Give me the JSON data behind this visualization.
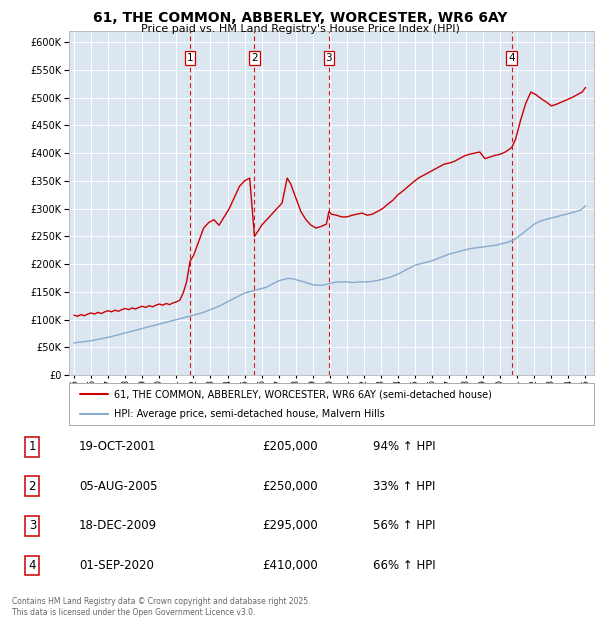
{
  "title": "61, THE COMMON, ABBERLEY, WORCESTER, WR6 6AY",
  "subtitle": "Price paid vs. HM Land Registry's House Price Index (HPI)",
  "legend_property": "61, THE COMMON, ABBERLEY, WORCESTER, WR6 6AY (semi-detached house)",
  "legend_hpi": "HPI: Average price, semi-detached house, Malvern Hills",
  "footer": "Contains HM Land Registry data © Crown copyright and database right 2025.\nThis data is licensed under the Open Government Licence v3.0.",
  "ylim": [
    0,
    620000
  ],
  "yticks": [
    0,
    50000,
    100000,
    150000,
    200000,
    250000,
    300000,
    350000,
    400000,
    450000,
    500000,
    550000,
    600000
  ],
  "xlim_start": 1994.7,
  "xlim_end": 2025.5,
  "property_color": "#cc0000",
  "hpi_color": "#88aacc",
  "background_color": "#dce6f1",
  "sale_events": [
    {
      "num": 1,
      "year": 2001.8,
      "price": 205000,
      "label": "19-OCT-2001",
      "pct": "94%",
      "dir": "↑"
    },
    {
      "num": 2,
      "year": 2005.58,
      "price": 250000,
      "label": "05-AUG-2005",
      "pct": "33%",
      "dir": "↑"
    },
    {
      "num": 3,
      "year": 2009.95,
      "price": 295000,
      "label": "18-DEC-2009",
      "pct": "56%",
      "dir": "↑"
    },
    {
      "num": 4,
      "year": 2020.67,
      "price": 410000,
      "label": "01-SEP-2020",
      "pct": "66%",
      "dir": "↑"
    }
  ],
  "property_line_x": [
    1995.0,
    1995.2,
    1995.4,
    1995.6,
    1995.8,
    1996.0,
    1996.2,
    1996.4,
    1996.6,
    1996.8,
    1997.0,
    1997.2,
    1997.4,
    1997.6,
    1997.8,
    1998.0,
    1998.2,
    1998.4,
    1998.6,
    1998.8,
    1999.0,
    1999.2,
    1999.4,
    1999.6,
    1999.8,
    2000.0,
    2000.2,
    2000.4,
    2000.6,
    2000.8,
    2001.0,
    2001.2,
    2001.4,
    2001.6,
    2001.8,
    2001.8,
    2002.0,
    2002.3,
    2002.6,
    2002.9,
    2003.2,
    2003.5,
    2003.8,
    2004.1,
    2004.4,
    2004.7,
    2005.0,
    2005.3,
    2005.58,
    2005.58,
    2005.8,
    2006.0,
    2006.3,
    2006.6,
    2006.9,
    2007.2,
    2007.5,
    2007.7,
    2008.0,
    2008.3,
    2008.6,
    2008.9,
    2009.2,
    2009.5,
    2009.8,
    2009.95,
    2009.95,
    2010.1,
    2010.4,
    2010.7,
    2011.0,
    2011.3,
    2011.6,
    2011.9,
    2012.2,
    2012.5,
    2012.8,
    2013.1,
    2013.4,
    2013.7,
    2014.0,
    2014.3,
    2014.6,
    2014.9,
    2015.2,
    2015.5,
    2015.8,
    2016.1,
    2016.4,
    2016.7,
    2017.0,
    2017.3,
    2017.6,
    2017.9,
    2018.2,
    2018.5,
    2018.8,
    2019.1,
    2019.4,
    2019.7,
    2020.0,
    2020.3,
    2020.67,
    2020.67,
    2020.9,
    2021.2,
    2021.5,
    2021.8,
    2022.1,
    2022.4,
    2022.7,
    2023.0,
    2023.3,
    2023.6,
    2023.9,
    2024.2,
    2024.5,
    2024.8,
    2025.0
  ],
  "property_line_y": [
    108000,
    106000,
    109000,
    107000,
    110000,
    112000,
    110000,
    113000,
    111000,
    114000,
    116000,
    114000,
    117000,
    115000,
    118000,
    120000,
    118000,
    121000,
    119000,
    122000,
    124000,
    122000,
    125000,
    123000,
    126000,
    128000,
    126000,
    129000,
    127000,
    130000,
    132000,
    135000,
    148000,
    168000,
    205000,
    205000,
    215000,
    240000,
    265000,
    275000,
    280000,
    270000,
    285000,
    300000,
    320000,
    340000,
    350000,
    355000,
    250000,
    250000,
    260000,
    270000,
    280000,
    290000,
    300000,
    310000,
    355000,
    345000,
    320000,
    295000,
    280000,
    270000,
    265000,
    268000,
    272000,
    295000,
    295000,
    290000,
    288000,
    285000,
    285000,
    288000,
    290000,
    292000,
    288000,
    290000,
    295000,
    300000,
    308000,
    315000,
    325000,
    332000,
    340000,
    348000,
    355000,
    360000,
    365000,
    370000,
    375000,
    380000,
    382000,
    385000,
    390000,
    395000,
    398000,
    400000,
    402000,
    390000,
    393000,
    396000,
    398000,
    402000,
    410000,
    410000,
    425000,
    460000,
    490000,
    510000,
    505000,
    498000,
    492000,
    485000,
    488000,
    492000,
    496000,
    500000,
    505000,
    510000,
    518000
  ],
  "hpi_line_x": [
    1995.0,
    1995.25,
    1995.5,
    1995.75,
    1996.0,
    1996.25,
    1996.5,
    1996.75,
    1997.0,
    1997.25,
    1997.5,
    1997.75,
    1998.0,
    1998.25,
    1998.5,
    1998.75,
    1999.0,
    1999.25,
    1999.5,
    1999.75,
    2000.0,
    2000.25,
    2000.5,
    2000.75,
    2001.0,
    2001.25,
    2001.5,
    2001.75,
    2002.0,
    2002.25,
    2002.5,
    2002.75,
    2003.0,
    2003.25,
    2003.5,
    2003.75,
    2004.0,
    2004.25,
    2004.5,
    2004.75,
    2005.0,
    2005.25,
    2005.5,
    2005.75,
    2006.0,
    2006.25,
    2006.5,
    2006.75,
    2007.0,
    2007.25,
    2007.5,
    2007.75,
    2008.0,
    2008.25,
    2008.5,
    2008.75,
    2009.0,
    2009.25,
    2009.5,
    2009.75,
    2010.0,
    2010.25,
    2010.5,
    2010.75,
    2011.0,
    2011.25,
    2011.5,
    2011.75,
    2012.0,
    2012.25,
    2012.5,
    2012.75,
    2013.0,
    2013.25,
    2013.5,
    2013.75,
    2014.0,
    2014.25,
    2014.5,
    2014.75,
    2015.0,
    2015.25,
    2015.5,
    2015.75,
    2016.0,
    2016.25,
    2016.5,
    2016.75,
    2017.0,
    2017.25,
    2017.5,
    2017.75,
    2018.0,
    2018.25,
    2018.5,
    2018.75,
    2019.0,
    2019.25,
    2019.5,
    2019.75,
    2020.0,
    2020.25,
    2020.5,
    2020.75,
    2021.0,
    2021.25,
    2021.5,
    2021.75,
    2022.0,
    2022.25,
    2022.5,
    2022.75,
    2023.0,
    2023.25,
    2023.5,
    2023.75,
    2024.0,
    2024.25,
    2024.5,
    2024.75,
    2025.0
  ],
  "hpi_line_y": [
    58000,
    59000,
    60000,
    61000,
    62000,
    63500,
    65000,
    66500,
    68000,
    70000,
    72000,
    74000,
    76000,
    78000,
    80000,
    82000,
    84000,
    86000,
    88000,
    90000,
    92000,
    94000,
    96000,
    98000,
    100000,
    102000,
    104000,
    106000,
    108000,
    110000,
    112000,
    115000,
    118000,
    121000,
    124000,
    128000,
    132000,
    136000,
    140000,
    144000,
    148000,
    150000,
    152000,
    154000,
    156000,
    158000,
    162000,
    166000,
    170000,
    172000,
    174000,
    174000,
    172000,
    170000,
    168000,
    165000,
    163000,
    162000,
    162000,
    163000,
    165000,
    167000,
    168000,
    168000,
    168000,
    167000,
    167000,
    168000,
    168000,
    168000,
    169000,
    170000,
    172000,
    174000,
    176000,
    179000,
    182000,
    186000,
    190000,
    194000,
    198000,
    200000,
    202000,
    204000,
    206000,
    209000,
    212000,
    215000,
    218000,
    220000,
    222000,
    224000,
    226000,
    228000,
    229000,
    230000,
    231000,
    232000,
    233000,
    234000,
    236000,
    238000,
    240000,
    243000,
    248000,
    254000,
    260000,
    266000,
    272000,
    276000,
    279000,
    281000,
    283000,
    285000,
    287000,
    289000,
    291000,
    293000,
    295000,
    298000,
    305000
  ]
}
